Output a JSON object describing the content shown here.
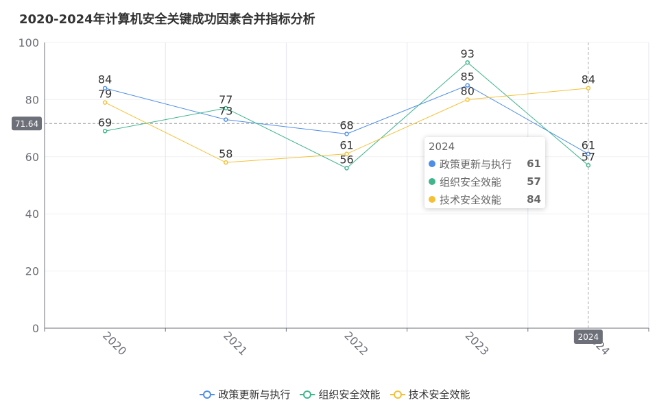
{
  "chart_data": {
    "type": "line",
    "title": "2020-2024年计算机安全关键成功因素合并指标分析",
    "categories": [
      "2020",
      "2021",
      "2022",
      "2023",
      "2024"
    ],
    "series": [
      {
        "name": "政策更新与执行",
        "color": "#4e8ee8",
        "values": [
          84,
          73,
          68,
          85,
          61
        ]
      },
      {
        "name": "组织安全效能",
        "color": "#3fb58c",
        "values": [
          69,
          77,
          56,
          93,
          57
        ]
      },
      {
        "name": "技术安全效能",
        "color": "#f4c136",
        "values": [
          79,
          58,
          61,
          80,
          84
        ]
      }
    ],
    "ylim": [
      0,
      100
    ],
    "yticks": [
      0,
      20,
      40,
      60,
      80,
      100
    ],
    "grid": true,
    "legend": "bottom-center",
    "axis_pointer": {
      "y_value": "71.64",
      "x_label": "2024"
    },
    "tooltip": {
      "title": "2024",
      "rows": [
        {
          "name": "政策更新与执行",
          "value": "61",
          "color": "#4e8ee8"
        },
        {
          "name": "组织安全效能",
          "value": "57",
          "color": "#3fb58c"
        },
        {
          "name": "技术安全效能",
          "value": "84",
          "color": "#f4c136"
        }
      ]
    }
  }
}
